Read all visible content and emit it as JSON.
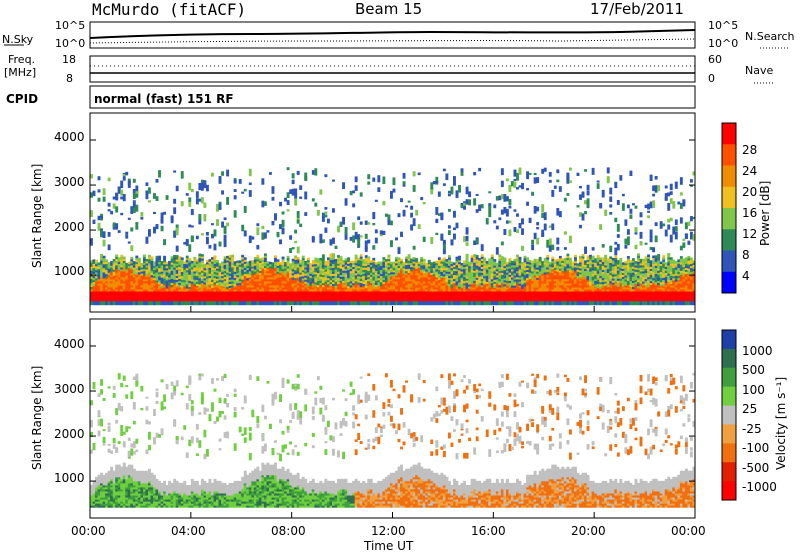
{
  "header": {
    "station": "McMurdo (fitACF)",
    "beam": "Beam 15",
    "date": "17/Feb/2011"
  },
  "top_panels": {
    "nsky_label": "N.Sky",
    "nsearch_label": "N.Search",
    "nsky_ticks": [
      "10^5",
      "10^0"
    ],
    "nsearch_ticks": [
      "10^5",
      "10^0"
    ],
    "freq_label": "Freq.",
    "freq_unit": "[MHz]",
    "freq_ticks": [
      "18",
      "8"
    ],
    "nave_label": "Nave",
    "nave_ticks": [
      "60",
      "0"
    ],
    "cpid_label": "CPID",
    "cpid_value": "normal (fast) 151 RF"
  },
  "chart_data": [
    {
      "type": "heatmap",
      "name": "power",
      "ylabel": "Slant Range [km]",
      "ylim": [
        180,
        4600
      ],
      "yticks": [
        "1000",
        "2000",
        "3000",
        "4000"
      ],
      "xlim": [
        0,
        24
      ],
      "colorbar": {
        "label": "Power [dB]",
        "ticks": [
          "4",
          "8",
          "12",
          "16",
          "20",
          "24",
          "28"
        ],
        "colors": [
          "#0000ff",
          "#2f55b8",
          "#2e8b57",
          "#7fc64a",
          "#f0c020",
          "#f08c00",
          "#ff5000",
          "#ff0000"
        ]
      }
    },
    {
      "type": "heatmap",
      "name": "velocity",
      "ylabel": "Slant Range [km]",
      "ylim": [
        180,
        4600
      ],
      "yticks": [
        "1000",
        "2000",
        "3000",
        "4000"
      ],
      "xlim": [
        0,
        24
      ],
      "xlabel": "Time UT",
      "xticks": [
        "00:00",
        "04:00",
        "08:00",
        "12:00",
        "16:00",
        "20:00",
        "00:00"
      ],
      "colorbar": {
        "label": "Velocity [m s⁻¹]",
        "ticks": [
          "1000",
          "500",
          "100",
          "25",
          "-25",
          "-100",
          "-500",
          "-1000"
        ],
        "colors": [
          "#1f3fa8",
          "#2f6f4f",
          "#3f9f3f",
          "#6fcf3f",
          "#c0c0c0",
          "#f0a040",
          "#f07010",
          "#e02000",
          "#ff0000"
        ]
      }
    }
  ]
}
